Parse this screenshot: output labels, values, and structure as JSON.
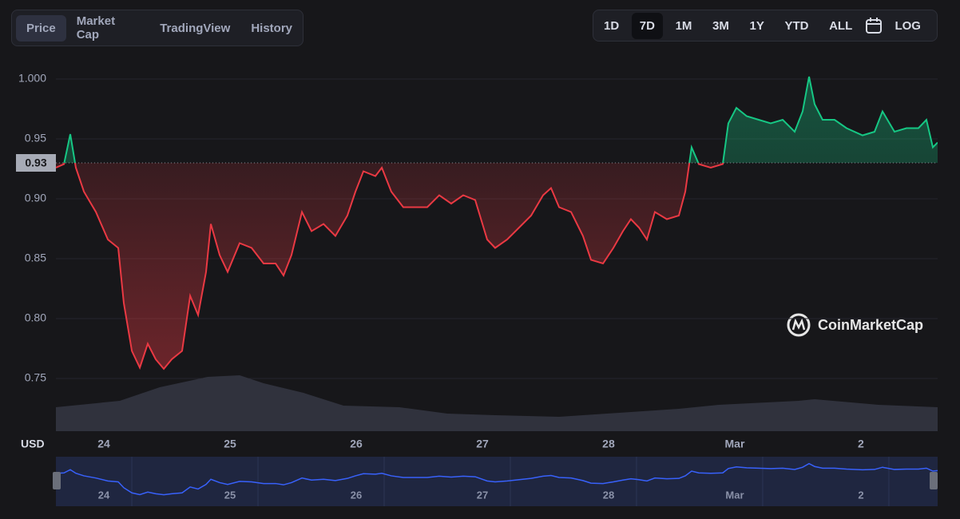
{
  "tabs": [
    "Price",
    "Market Cap",
    "TradingView",
    "History"
  ],
  "ranges": [
    "1D",
    "7D",
    "1M",
    "3M",
    "1Y",
    "YTD",
    "ALL"
  ],
  "log_label": "LOG",
  "watermark": "CoinMarketCap",
  "chart_data": {
    "type": "line",
    "y_unit": "USD",
    "x": [
      23.62,
      23.684,
      23.734,
      23.778,
      23.842,
      23.937,
      24.032,
      24.114,
      24.158,
      24.222,
      24.285,
      24.348,
      24.411,
      24.475,
      24.538,
      24.62,
      24.684,
      24.747,
      24.81,
      24.848,
      24.918,
      24.981,
      25.076,
      25.171,
      25.266,
      25.361,
      25.424,
      25.487,
      25.57,
      25.646,
      25.741,
      25.835,
      25.93,
      25.994,
      26.057,
      26.152,
      26.203,
      26.278,
      26.373,
      26.468,
      26.563,
      26.658,
      26.753,
      26.848,
      26.943,
      27.038,
      27.101,
      27.196,
      27.291,
      27.386,
      27.481,
      27.544,
      27.608,
      27.703,
      27.797,
      27.861,
      27.956,
      28.038,
      28.114,
      28.177,
      28.241,
      28.304,
      28.367,
      28.462,
      28.557,
      28.608,
      28.658,
      28.715,
      28.81,
      28.905,
      28.949,
      29.013,
      29.095,
      29.19,
      29.285,
      29.38,
      29.475,
      29.538,
      29.589,
      29.633,
      29.696,
      29.791,
      29.886,
      30.013,
      30.108,
      30.171,
      30.266,
      30.361,
      30.456,
      30.519,
      30.57,
      30.608
    ],
    "series": [
      {
        "name": "Price",
        "up_color": "#16c784",
        "down_color": "#ea3943",
        "values": [
          0.926,
          0.929,
          0.954,
          0.926,
          0.906,
          0.889,
          0.866,
          0.859,
          0.813,
          0.773,
          0.759,
          0.779,
          0.766,
          0.758,
          0.766,
          0.773,
          0.819,
          0.803,
          0.839,
          0.879,
          0.853,
          0.839,
          0.863,
          0.859,
          0.846,
          0.846,
          0.836,
          0.853,
          0.889,
          0.873,
          0.879,
          0.869,
          0.886,
          0.906,
          0.923,
          0.919,
          0.926,
          0.906,
          0.893,
          0.893,
          0.893,
          0.903,
          0.896,
          0.903,
          0.899,
          0.866,
          0.859,
          0.866,
          0.876,
          0.886,
          0.903,
          0.909,
          0.893,
          0.889,
          0.869,
          0.849,
          0.846,
          0.859,
          0.873,
          0.883,
          0.876,
          0.866,
          0.889,
          0.883,
          0.886,
          0.906,
          0.943,
          0.929,
          0.926,
          0.929,
          0.963,
          0.976,
          0.969,
          0.966,
          0.963,
          0.966,
          0.956,
          0.973,
          1.002,
          0.979,
          0.966,
          0.966,
          0.959,
          0.953,
          0.956,
          0.973,
          0.956,
          0.959,
          0.959,
          0.966,
          0.943,
          0.947
        ]
      }
    ],
    "reference_line": {
      "value": 0.93
    },
    "volume": {
      "color": "#30323d",
      "x": [
        23.62,
        24.126,
        24.443,
        24.823,
        25.076,
        25.266,
        25.582,
        25.899,
        26.342,
        26.722,
        27.101,
        27.608,
        27.987,
        28.557,
        28.873,
        29.506,
        29.633,
        30.139,
        30.608
      ],
      "values": [
        30,
        38,
        55,
        68,
        70,
        60,
        48,
        32,
        30,
        22,
        20,
        18,
        22,
        28,
        33,
        38,
        40,
        33,
        30
      ]
    },
    "xlim": [
      23.62,
      30.608
    ],
    "ylim": [
      0.706,
      1.018
    ],
    "y2lim": [
      0,
      100
    ],
    "xticks": [
      24,
      25,
      26,
      27,
      28,
      {
        "value": 29,
        "label": "Mar"
      },
      {
        "value": 30,
        "label": "2"
      }
    ],
    "yticks": [
      {
        "value": 0.75,
        "label": "0.75"
      },
      {
        "value": 0.8,
        "label": "0.80"
      },
      {
        "value": 0.85,
        "label": "0.85"
      },
      {
        "value": 0.9,
        "label": "0.90"
      },
      {
        "value": 0.95,
        "label": "0.95"
      },
      {
        "value": 1,
        "label": "1.000"
      }
    ],
    "grid": true,
    "navigator_color": "#3861fb"
  }
}
